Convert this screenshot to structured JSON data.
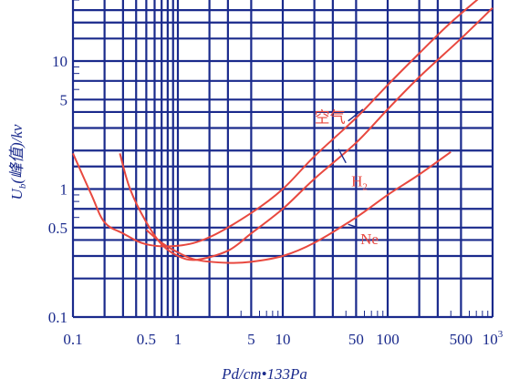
{
  "chart_data": {
    "type": "line",
    "title": "",
    "xlabel": "Pd/cm•133Pa",
    "ylabel": "Ub(峰值)/kv",
    "ylabel_parts": {
      "U": "U",
      "sub": "b",
      "rest": "(峰值)/kv"
    },
    "xscale": "log",
    "yscale": "log",
    "xlim": [
      0.1,
      1000
    ],
    "ylim": [
      0.1,
      30
    ],
    "grid": true,
    "x_ticks": [
      {
        "value": 0.1,
        "label": "0.1"
      },
      {
        "value": 0.5,
        "label": "0.5"
      },
      {
        "value": 1,
        "label": "1"
      },
      {
        "value": 5,
        "label": "5"
      },
      {
        "value": 10,
        "label": "10"
      },
      {
        "value": 50,
        "label": "50"
      },
      {
        "value": 100,
        "label": "100"
      },
      {
        "value": 500,
        "label": "500"
      },
      {
        "value": 1000,
        "label": "10",
        "sup": "3"
      }
    ],
    "y_ticks": [
      {
        "value": 0.1,
        "label": "0.1"
      },
      {
        "value": 0.5,
        "label": "0.5"
      },
      {
        "value": 1,
        "label": "1"
      },
      {
        "value": 5,
        "label": "5"
      },
      {
        "value": 10,
        "label": "10"
      }
    ],
    "series": [
      {
        "name": "空气",
        "points": [
          [
            0.1,
            1.9
          ],
          [
            0.15,
            0.9
          ],
          [
            0.2,
            0.55
          ],
          [
            0.3,
            0.45
          ],
          [
            0.5,
            0.37
          ],
          [
            1,
            0.36
          ],
          [
            2,
            0.42
          ],
          [
            5,
            0.65
          ],
          [
            10,
            1.0
          ],
          [
            20,
            1.8
          ],
          [
            50,
            3.6
          ],
          [
            100,
            6.5
          ],
          [
            200,
            11.5
          ],
          [
            400,
            20
          ],
          [
            1000,
            38
          ]
        ]
      },
      {
        "name": "H2",
        "points": [
          [
            0.28,
            1.9
          ],
          [
            0.35,
            1.0
          ],
          [
            0.5,
            0.55
          ],
          [
            0.7,
            0.37
          ],
          [
            1,
            0.3
          ],
          [
            1.5,
            0.28
          ],
          [
            3,
            0.33
          ],
          [
            5,
            0.45
          ],
          [
            10,
            0.7
          ],
          [
            20,
            1.2
          ],
          [
            50,
            2.3
          ],
          [
            100,
            4.2
          ],
          [
            200,
            7.5
          ],
          [
            500,
            15
          ],
          [
            1000,
            26
          ]
        ]
      },
      {
        "name": "Ne",
        "points": [
          [
            0.5,
            0.48
          ],
          [
            0.7,
            0.38
          ],
          [
            1,
            0.32
          ],
          [
            1.5,
            0.28
          ],
          [
            3,
            0.265
          ],
          [
            5,
            0.27
          ],
          [
            10,
            0.3
          ],
          [
            20,
            0.38
          ],
          [
            50,
            0.6
          ],
          [
            100,
            0.9
          ],
          [
            200,
            1.3
          ],
          [
            400,
            1.95
          ]
        ]
      }
    ],
    "annotations": [
      {
        "series": "空气",
        "text": "空气"
      },
      {
        "series": "H2",
        "text": "H2"
      },
      {
        "series": "Ne",
        "text": "Ne"
      }
    ],
    "colors": {
      "grid": "#1a2a8c",
      "curve": "#e8483f",
      "background": "#ffffff"
    }
  }
}
